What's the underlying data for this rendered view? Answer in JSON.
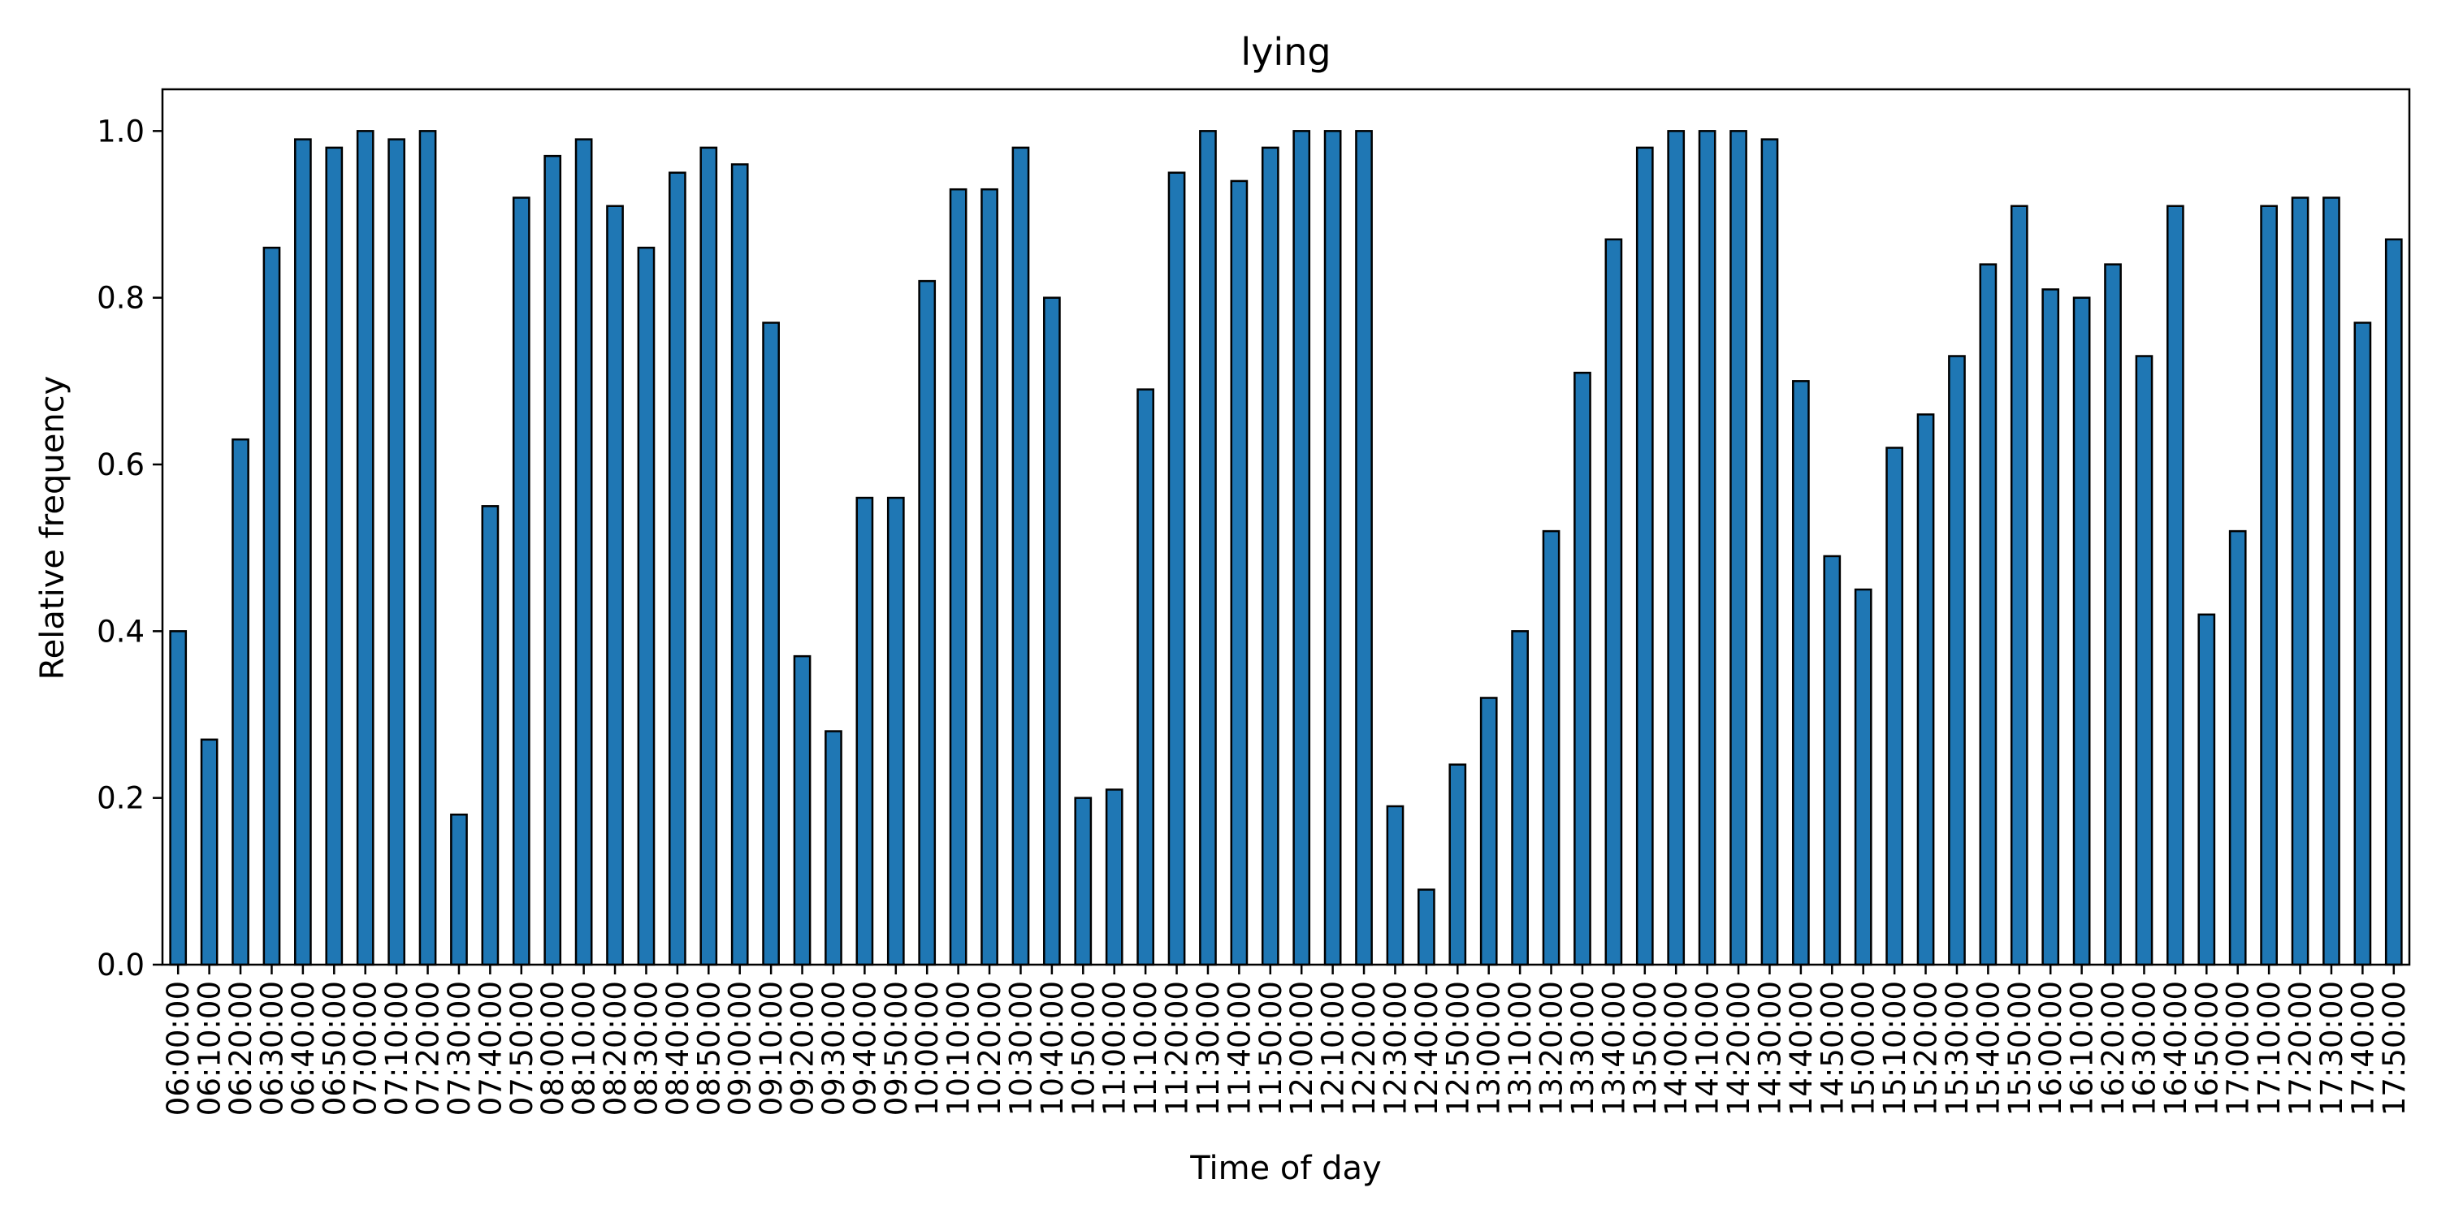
{
  "chart_data": {
    "type": "bar",
    "title": "lying",
    "xlabel": "Time of day",
    "ylabel": "Relative frequency",
    "ylim": [
      0,
      1.05
    ],
    "yticks": [
      "0.0",
      "0.2",
      "0.4",
      "0.6",
      "0.8",
      "1.0"
    ],
    "grid": false,
    "bar_color": "#1f77b4",
    "edge_color": "#000000",
    "categories": [
      "06:00:00",
      "06:10:00",
      "06:20:00",
      "06:30:00",
      "06:40:00",
      "06:50:00",
      "07:00:00",
      "07:10:00",
      "07:20:00",
      "07:30:00",
      "07:40:00",
      "07:50:00",
      "08:00:00",
      "08:10:00",
      "08:20:00",
      "08:30:00",
      "08:40:00",
      "08:50:00",
      "09:00:00",
      "09:10:00",
      "09:20:00",
      "09:30:00",
      "09:40:00",
      "09:50:00",
      "10:00:00",
      "10:10:00",
      "10:20:00",
      "10:30:00",
      "10:40:00",
      "10:50:00",
      "11:00:00",
      "11:10:00",
      "11:20:00",
      "11:30:00",
      "11:40:00",
      "11:50:00",
      "12:00:00",
      "12:10:00",
      "12:20:00",
      "12:30:00",
      "12:40:00",
      "12:50:00",
      "13:00:00",
      "13:10:00",
      "13:20:00",
      "13:30:00",
      "13:40:00",
      "13:50:00",
      "14:00:00",
      "14:10:00",
      "14:20:00",
      "14:30:00",
      "14:40:00",
      "14:50:00",
      "15:00:00",
      "15:10:00",
      "15:20:00",
      "15:30:00",
      "15:40:00",
      "15:50:00",
      "16:00:00",
      "16:10:00",
      "16:20:00",
      "16:30:00",
      "16:40:00",
      "16:50:00",
      "17:00:00",
      "17:10:00",
      "17:20:00",
      "17:30:00",
      "17:40:00",
      "17:50:00"
    ],
    "values": [
      0.4,
      0.27,
      0.63,
      0.86,
      0.99,
      0.98,
      1.0,
      0.99,
      1.0,
      0.18,
      0.55,
      0.92,
      0.97,
      0.99,
      0.91,
      0.86,
      0.95,
      0.98,
      0.96,
      0.77,
      0.37,
      0.28,
      0.56,
      0.56,
      0.82,
      0.93,
      0.93,
      0.98,
      0.8,
      0.2,
      0.21,
      0.69,
      0.95,
      1.0,
      0.94,
      0.98,
      1.0,
      1.0,
      1.0,
      0.19,
      0.09,
      0.24,
      0.32,
      0.4,
      0.52,
      0.71,
      0.87,
      0.98,
      1.0,
      1.0,
      1.0,
      0.99,
      0.7,
      0.49,
      0.45,
      0.62,
      0.66,
      0.73,
      0.84,
      0.91,
      0.81,
      0.8,
      0.84,
      0.73,
      0.91,
      0.42,
      0.52,
      0.91,
      0.92,
      0.92,
      0.77,
      0.87
    ]
  }
}
